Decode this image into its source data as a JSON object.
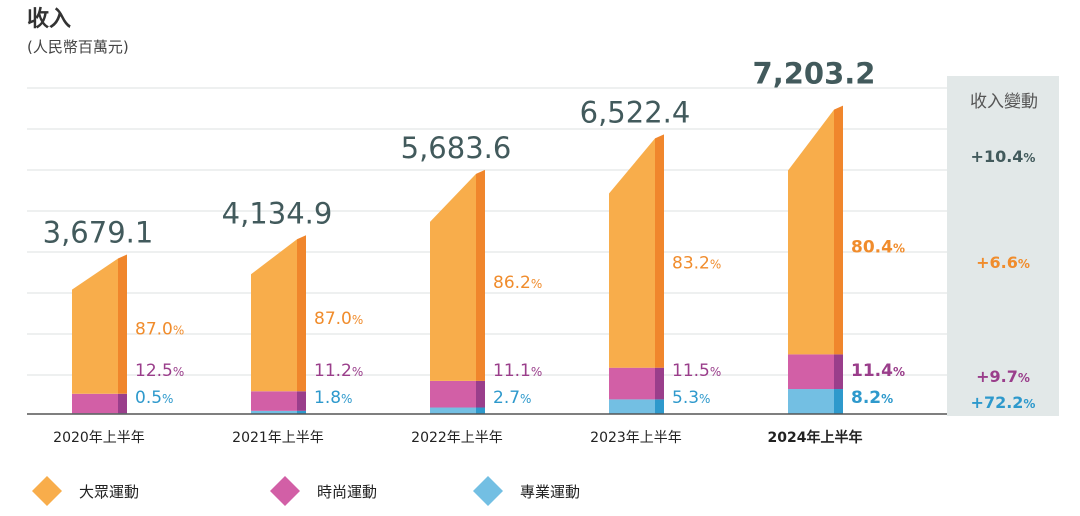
{
  "title": "收入",
  "subtitle": "(人民幣百萬元)",
  "change_header": "收入變動",
  "colors": {
    "mass": "#f8ad4b",
    "mass_side": "#f0862c",
    "fashion": "#d25fa6",
    "fashion_side": "#9a3e8b",
    "pro": "#73bfe3",
    "pro_side": "#2e99cc",
    "mass_text": "#f08c2c",
    "fashion_text": "#9a3e8b",
    "pro_text": "#2e99cc",
    "total_text": "#425a5c",
    "change_bg": "#e2e8e8",
    "grid": "#dde2e2"
  },
  "chart_data": {
    "type": "bar",
    "title": "收入",
    "subtitle": "(人民幣百萬元)",
    "categories": [
      "2020年上半年",
      "2021年上半年",
      "2022年上半年",
      "2023年上半年",
      "2024年上半年"
    ],
    "totals": [
      3679.1,
      4134.9,
      5683.6,
      6522.4,
      7203.2
    ],
    "total_labels": [
      "3,679.1",
      "4,134.9",
      "5,683.6",
      "6,522.4",
      "7,203.2"
    ],
    "series": [
      {
        "name": "大眾運動",
        "share_pct": [
          87.0,
          87.0,
          86.2,
          83.2,
          80.4
        ],
        "labels": [
          "87.0",
          "87.0",
          "86.2",
          "83.2",
          "80.4"
        ]
      },
      {
        "name": "時尚運動",
        "share_pct": [
          12.5,
          11.2,
          11.1,
          11.5,
          11.4
        ],
        "labels": [
          "12.5",
          "11.2",
          "11.1",
          "11.5",
          "11.4"
        ]
      },
      {
        "name": "專業運動",
        "share_pct": [
          0.5,
          1.8,
          2.7,
          5.3,
          8.2
        ],
        "labels": [
          "0.5",
          "1.8",
          "2.7",
          "5.3",
          "8.2"
        ]
      }
    ],
    "highlight_index": 4,
    "ylim": [
      0,
      8000
    ],
    "grid": true,
    "legend_position": "bottom-left",
    "change": [
      {
        "series": "total",
        "label": "+10.4"
      },
      {
        "series": "大眾運動",
        "label": "+6.6"
      },
      {
        "series": "時尚運動",
        "label": "+9.7"
      },
      {
        "series": "專業運動",
        "label": "+72.2"
      }
    ]
  }
}
